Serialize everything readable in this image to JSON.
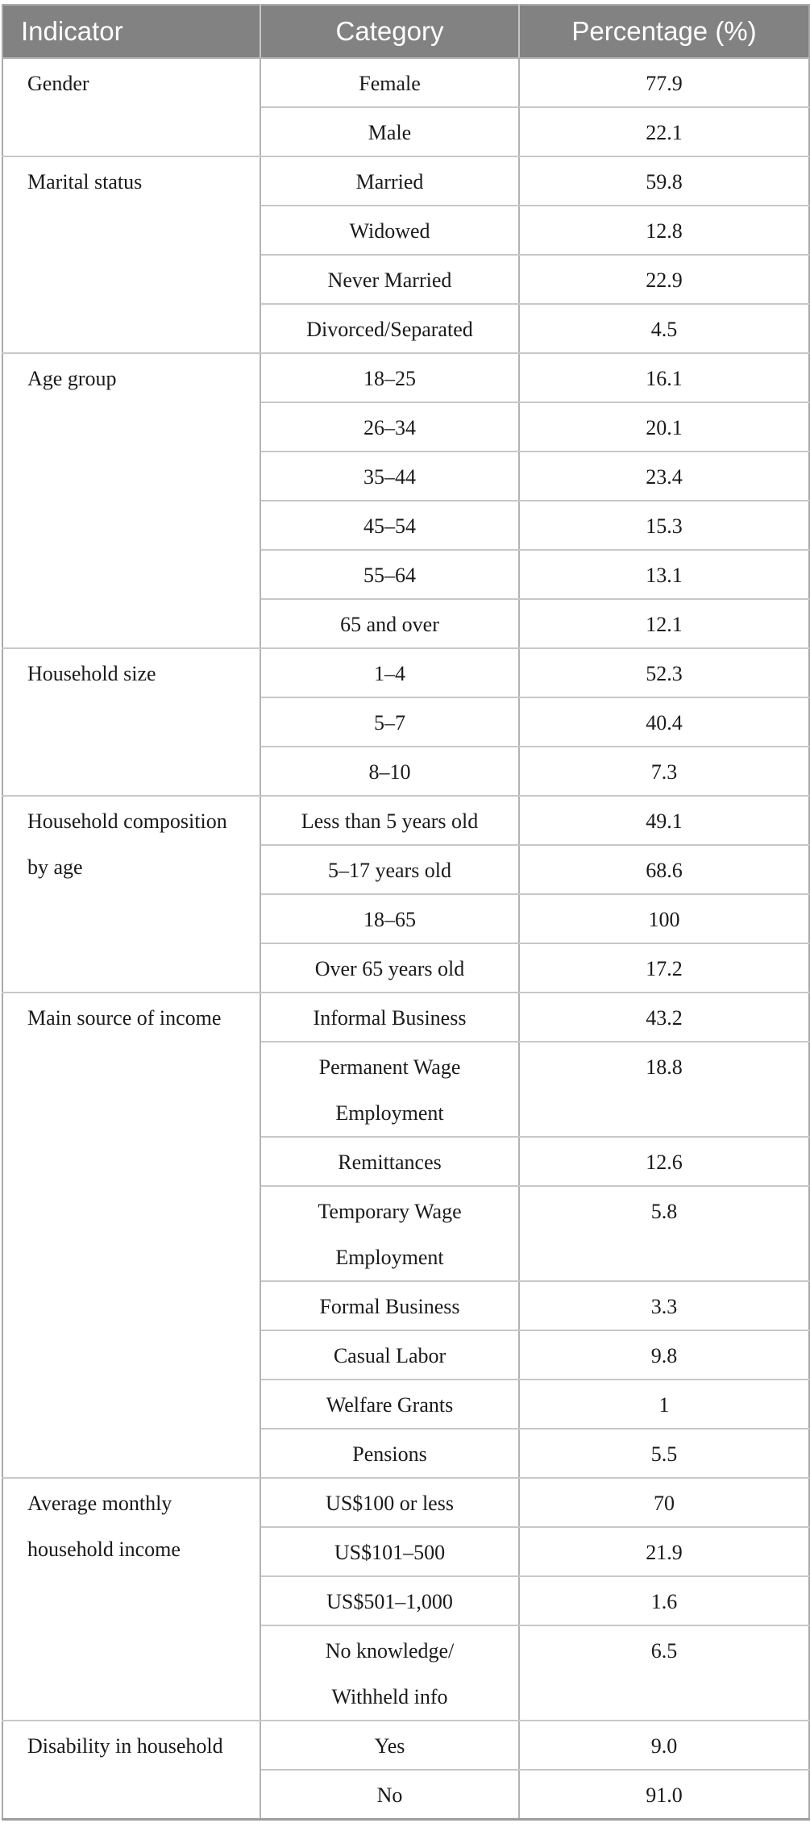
{
  "table": {
    "headers": [
      "Indicator",
      "Category",
      "Percentage (%)"
    ],
    "header_bg_color": "#828282",
    "header_text_color": "#ffffff",
    "sections": [
      {
        "indicator": [
          "Gender"
        ],
        "rows": [
          {
            "category": [
              "Female"
            ],
            "value": "77.9"
          },
          {
            "category": [
              "Male"
            ],
            "value": "22.1"
          }
        ]
      },
      {
        "indicator": [
          "Marital status"
        ],
        "rows": [
          {
            "category": [
              "Married"
            ],
            "value": "59.8"
          },
          {
            "category": [
              "Widowed"
            ],
            "value": "12.8"
          },
          {
            "category": [
              "Never Married"
            ],
            "value": "22.9"
          },
          {
            "category": [
              "Divorced/Separated"
            ],
            "value": "4.5"
          }
        ]
      },
      {
        "indicator": [
          "Age group"
        ],
        "rows": [
          {
            "category": [
              "18–25"
            ],
            "value": "16.1"
          },
          {
            "category": [
              "26–34"
            ],
            "value": "20.1"
          },
          {
            "category": [
              "35–44"
            ],
            "value": "23.4"
          },
          {
            "category": [
              "45–54"
            ],
            "value": "15.3"
          },
          {
            "category": [
              "55–64"
            ],
            "value": "13.1"
          },
          {
            "category": [
              "65 and over"
            ],
            "value": "12.1"
          }
        ]
      },
      {
        "indicator": [
          "Household size"
        ],
        "rows": [
          {
            "category": [
              "1–4"
            ],
            "value": "52.3"
          },
          {
            "category": [
              "5–7"
            ],
            "value": "40.4"
          },
          {
            "category": [
              "8–10"
            ],
            "value": "7.3"
          }
        ]
      },
      {
        "indicator": [
          "Household composition",
          "by age"
        ],
        "rows": [
          {
            "category": [
              "Less than 5 years old"
            ],
            "value": "49.1"
          },
          {
            "category": [
              "5–17 years old"
            ],
            "value": "68.6"
          },
          {
            "category": [
              "18–65"
            ],
            "value": "100"
          },
          {
            "category": [
              "Over 65 years old"
            ],
            "value": "17.2"
          }
        ]
      },
      {
        "indicator": [
          "Main source of income"
        ],
        "rows": [
          {
            "category": [
              "Informal Business"
            ],
            "value": "43.2"
          },
          {
            "category": [
              "Permanent Wage",
              "Employment"
            ],
            "value": "18.8",
            "tall": true
          },
          {
            "category": [
              "Remittances"
            ],
            "value": "12.6"
          },
          {
            "category": [
              "Temporary Wage",
              "Employment"
            ],
            "value": "5.8",
            "tall": true
          },
          {
            "category": [
              "Formal Business"
            ],
            "value": "3.3"
          },
          {
            "category": [
              "Casual Labor"
            ],
            "value": "9.8"
          },
          {
            "category": [
              "Welfare Grants"
            ],
            "value": "1"
          },
          {
            "category": [
              "Pensions"
            ],
            "value": "5.5"
          }
        ]
      },
      {
        "indicator": [
          "Average monthly",
          "household income"
        ],
        "rows": [
          {
            "category": [
              "US$100 or less"
            ],
            "value": "70"
          },
          {
            "category": [
              "US$101–500"
            ],
            "value": "21.9"
          },
          {
            "category": [
              "US$501–1,000"
            ],
            "value": "1.6"
          },
          {
            "category": [
              "No knowledge/",
              "Withheld info"
            ],
            "value": "6.5",
            "tall": true
          }
        ]
      },
      {
        "indicator": [
          "Disability in household"
        ],
        "rows": [
          {
            "category": [
              "Yes"
            ],
            "value": "9.0"
          },
          {
            "category": [
              "No"
            ],
            "value": "91.0"
          }
        ]
      }
    ]
  }
}
